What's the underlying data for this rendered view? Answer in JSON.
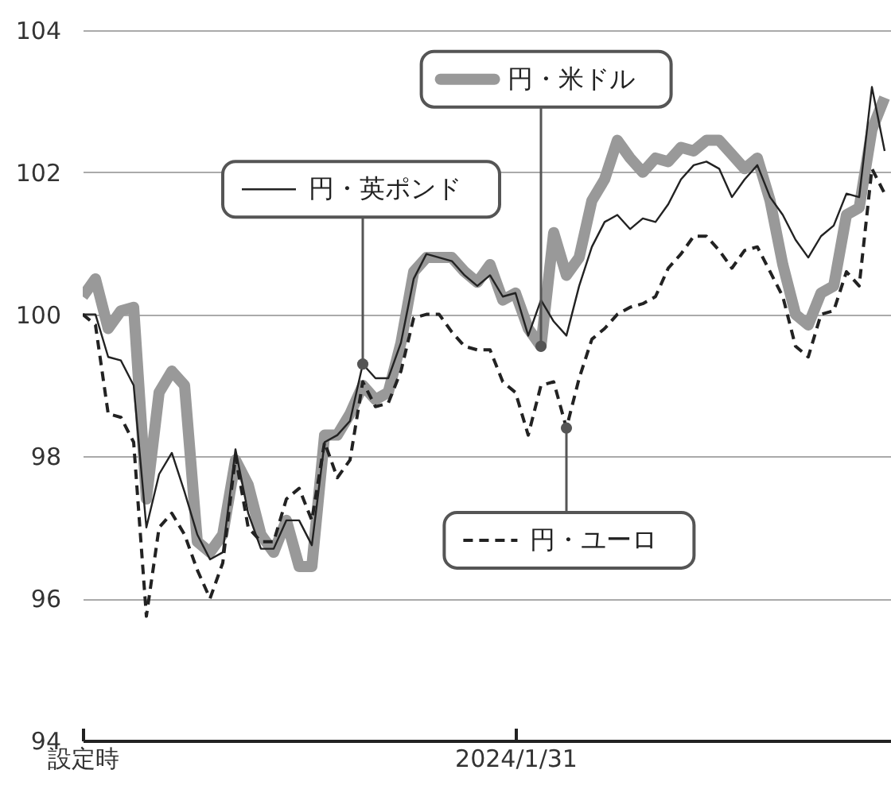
{
  "chart_data": {
    "type": "line",
    "categories": [
      "設定時",
      null,
      null,
      null,
      null,
      null,
      null,
      null,
      null,
      null,
      null,
      null,
      null,
      null,
      null,
      null,
      null,
      null,
      null,
      null,
      null,
      null,
      null,
      null,
      null,
      null,
      null,
      null,
      null,
      null,
      null,
      null,
      null,
      null,
      "2024/1/31",
      null,
      null,
      null,
      null,
      null,
      null,
      null,
      null,
      null,
      null,
      null,
      null,
      null,
      null,
      null,
      null,
      null,
      null,
      null,
      null,
      null,
      null,
      null,
      null,
      null,
      null,
      null,
      null,
      null
    ],
    "ylim": [
      94,
      104
    ],
    "yticks": [
      94,
      96,
      98,
      100,
      102,
      104
    ],
    "grid": "y",
    "legend": "top",
    "series": [
      {
        "name": "円・米ドル",
        "color": "#999999",
        "line_style": "solid",
        "values": [
          100.25,
          100.5,
          99.8,
          100.05,
          100.1,
          97.4,
          98.9,
          99.2,
          99.0,
          96.8,
          96.65,
          96.9,
          97.95,
          97.6,
          96.9,
          96.65,
          97.1,
          96.45,
          96.45,
          98.3,
          98.3,
          98.6,
          99.0,
          98.8,
          98.9,
          99.6,
          100.6,
          100.8,
          100.8,
          100.8,
          100.6,
          100.45,
          100.7,
          100.2,
          100.3,
          99.8,
          99.55,
          101.15,
          100.55,
          100.8,
          101.6,
          101.9,
          102.45,
          102.2,
          102.0,
          102.2,
          102.15,
          102.35,
          102.3,
          102.45,
          102.45,
          102.25,
          102.05,
          102.2,
          101.6,
          100.7,
          100.0,
          99.85,
          100.3,
          100.4,
          101.4,
          101.5,
          102.6,
          103.05
        ]
      },
      {
        "name": "円・英ポンド",
        "color": "#222222",
        "line_style": "solid",
        "values": [
          100.0,
          100.0,
          99.4,
          99.35,
          99.0,
          97.0,
          97.75,
          98.05,
          97.5,
          96.9,
          96.55,
          96.65,
          98.1,
          97.2,
          96.7,
          96.7,
          97.1,
          97.1,
          96.75,
          98.2,
          98.3,
          98.5,
          99.3,
          99.1,
          99.1,
          99.6,
          100.5,
          100.85,
          100.8,
          100.75,
          100.55,
          100.4,
          100.55,
          100.25,
          100.3,
          99.7,
          100.2,
          99.9,
          99.7,
          100.4,
          100.95,
          101.3,
          101.4,
          101.2,
          101.35,
          101.3,
          101.55,
          101.9,
          102.1,
          102.15,
          102.05,
          101.65,
          101.9,
          102.1,
          101.65,
          101.4,
          101.05,
          100.8,
          101.1,
          101.25,
          101.7,
          101.65,
          103.2,
          102.3
        ]
      },
      {
        "name": "円・ユーロ",
        "color": "#222222",
        "line_style": "dashed",
        "values": [
          100.0,
          99.85,
          98.6,
          98.55,
          98.2,
          95.75,
          97.0,
          97.2,
          96.9,
          96.4,
          96.0,
          96.5,
          98.0,
          97.0,
          96.8,
          96.8,
          97.4,
          97.55,
          97.1,
          98.2,
          97.7,
          97.95,
          99.05,
          98.7,
          98.75,
          99.2,
          99.95,
          100.0,
          100.0,
          99.75,
          99.55,
          99.5,
          99.5,
          99.05,
          98.9,
          98.3,
          99.0,
          99.05,
          98.4,
          99.1,
          99.65,
          99.8,
          100.0,
          100.1,
          100.15,
          100.25,
          100.65,
          100.85,
          101.1,
          101.1,
          100.9,
          100.65,
          100.9,
          100.95,
          100.6,
          100.25,
          99.55,
          99.4,
          100.0,
          100.05,
          100.6,
          100.4,
          102.05,
          101.7
        ]
      }
    ]
  }
}
